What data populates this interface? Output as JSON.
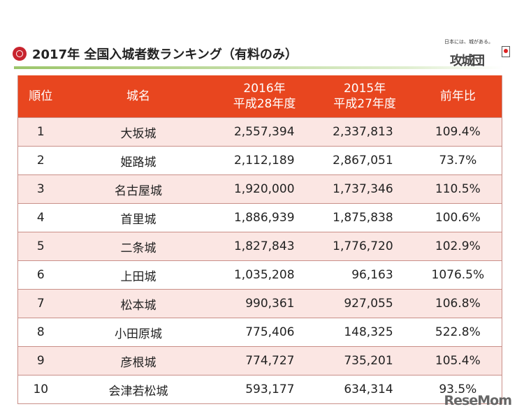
{
  "title": "2017年 全国入城者数ランキング（有料のみ）",
  "logo": {
    "tagline": "日本には、城がある。",
    "mark": "攻城団"
  },
  "watermark": "ReseMom",
  "colors": {
    "header": "#e8461f",
    "odd_row": "#fbe6e3",
    "rule": "#9cc56a"
  },
  "table": {
    "headers": [
      {
        "line1": "順位",
        "line2": ""
      },
      {
        "line1": "城名",
        "line2": ""
      },
      {
        "line1": "2016年",
        "line2": "平成28年度"
      },
      {
        "line1": "2015年",
        "line2": "平成27年度"
      },
      {
        "line1": "前年比",
        "line2": ""
      }
    ],
    "rows": [
      [
        "1",
        "大坂城",
        "2,557,394",
        "2,337,813",
        "109.4%"
      ],
      [
        "2",
        "姫路城",
        "2,112,189",
        "2,867,051",
        "73.7%"
      ],
      [
        "3",
        "名古屋城",
        "1,920,000",
        "1,737,346",
        "110.5%"
      ],
      [
        "4",
        "首里城",
        "1,886,939",
        "1,875,838",
        "100.6%"
      ],
      [
        "5",
        "二条城",
        "1,827,843",
        "1,776,720",
        "102.9%"
      ],
      [
        "6",
        "上田城",
        "1,035,208",
        "96,163",
        "1076.5%"
      ],
      [
        "7",
        "松本城",
        "990,361",
        "927,055",
        "106.8%"
      ],
      [
        "8",
        "小田原城",
        "775,406",
        "148,325",
        "522.8%"
      ],
      [
        "9",
        "彦根城",
        "774,727",
        "735,201",
        "105.4%"
      ],
      [
        "10",
        "会津若松城",
        "593,177",
        "634,314",
        "93.5%"
      ]
    ]
  }
}
